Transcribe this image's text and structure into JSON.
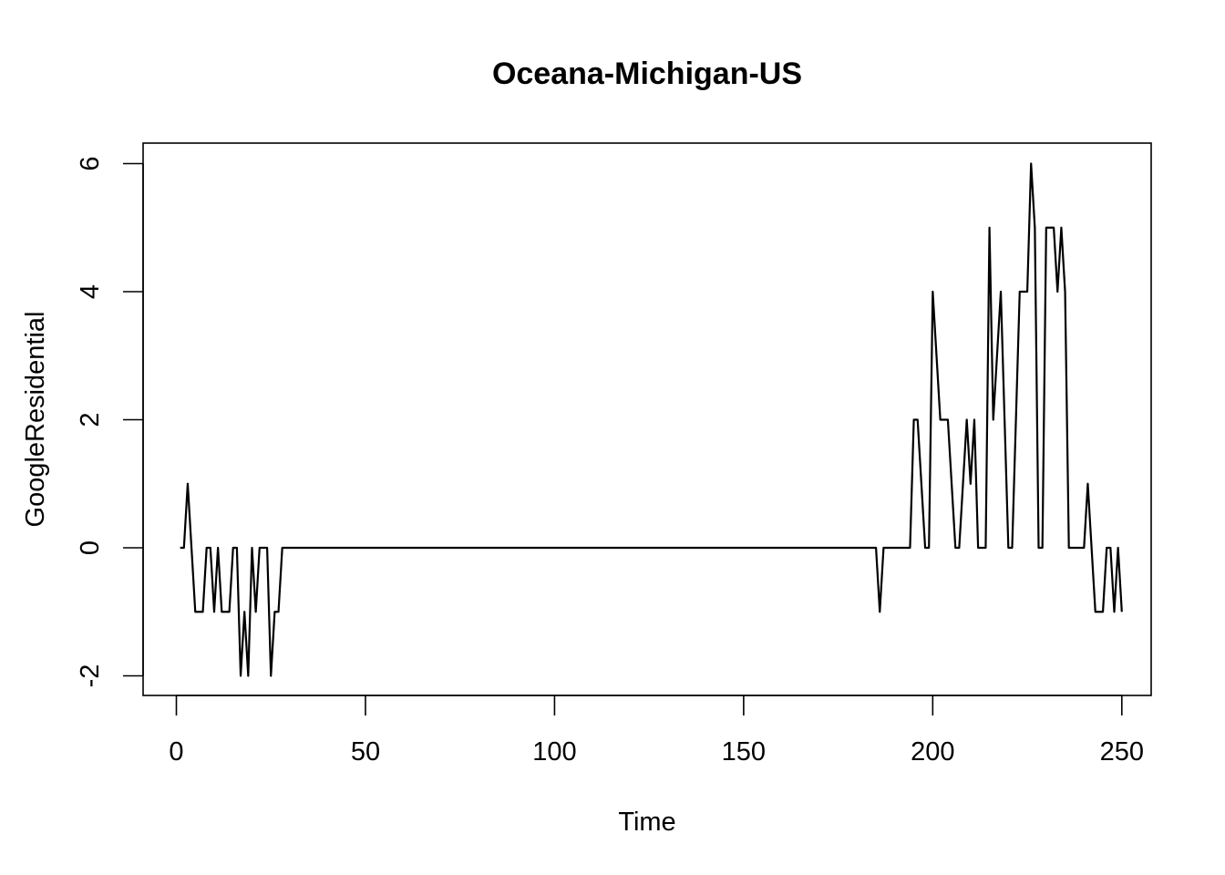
{
  "chart_data": {
    "type": "line",
    "title": "Oceana-Michigan-US",
    "xlabel": "Time",
    "ylabel": "GoogleResidential",
    "xlim": [
      0,
      250
    ],
    "ylim": [
      -2,
      6
    ],
    "x_ticks": [
      0,
      50,
      100,
      150,
      200,
      250
    ],
    "y_ticks": [
      -2,
      0,
      2,
      4,
      6
    ],
    "x_tick_labels": [
      "0",
      "50",
      "100",
      "150",
      "200",
      "250"
    ],
    "y_tick_labels": [
      "-2",
      "0",
      "2",
      "4",
      "6"
    ],
    "grid": false,
    "line_color": "#000000",
    "series": [
      {
        "x_start": 1,
        "values": [
          0,
          0,
          1,
          0,
          -1,
          -1,
          -1,
          0,
          0,
          -1,
          0,
          -1,
          -1,
          -1,
          0,
          0,
          -2,
          -1,
          -2,
          0,
          -1,
          0,
          0,
          0,
          -2,
          -1,
          -1,
          0,
          0,
          0,
          0,
          0,
          0,
          0,
          0,
          0,
          0,
          0,
          0,
          0,
          0,
          0,
          0,
          0,
          0,
          0,
          0,
          0,
          0,
          0,
          0,
          0,
          0,
          0,
          0,
          0,
          0,
          0,
          0,
          0,
          0,
          0,
          0,
          0,
          0,
          0,
          0,
          0,
          0,
          0,
          0,
          0,
          0,
          0,
          0,
          0,
          0,
          0,
          0,
          0,
          0,
          0,
          0,
          0,
          0,
          0,
          0,
          0,
          0,
          0,
          0,
          0,
          0,
          0,
          0,
          0,
          0,
          0,
          0,
          0,
          0,
          0,
          0,
          0,
          0,
          0,
          0,
          0,
          0,
          0,
          0,
          0,
          0,
          0,
          0,
          0,
          0,
          0,
          0,
          0,
          0,
          0,
          0,
          0,
          0,
          0,
          0,
          0,
          0,
          0,
          0,
          0,
          0,
          0,
          0,
          0,
          0,
          0,
          0,
          0,
          0,
          0,
          0,
          0,
          0,
          0,
          0,
          0,
          0,
          0,
          0,
          0,
          0,
          0,
          0,
          0,
          0,
          0,
          0,
          0,
          0,
          0,
          0,
          0,
          0,
          0,
          0,
          0,
          0,
          0,
          0,
          0,
          0,
          0,
          0,
          0,
          0,
          0,
          0,
          0,
          0,
          0,
          0,
          0,
          0,
          -1,
          0,
          0,
          0,
          0,
          0,
          0,
          0,
          0,
          2,
          2,
          1,
          0,
          0,
          4,
          3,
          2,
          2,
          2,
          1,
          0,
          0,
          1,
          2,
          1,
          2,
          0,
          0,
          0,
          5,
          2,
          3,
          4,
          2,
          0,
          0,
          2,
          4,
          4,
          4,
          6,
          5,
          0,
          0,
          5,
          5,
          5,
          4,
          5,
          4,
          0,
          0,
          0,
          0,
          0,
          1,
          0,
          -1,
          -1,
          -1,
          0,
          0,
          -1,
          0,
          -1
        ]
      }
    ]
  }
}
